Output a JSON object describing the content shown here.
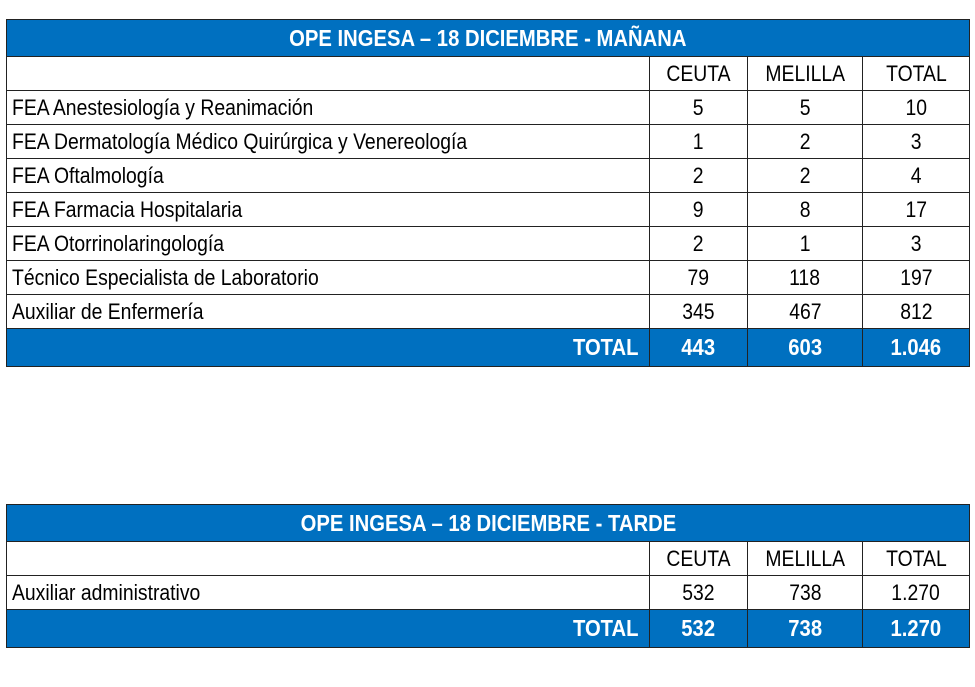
{
  "colors": {
    "header_bg": "#0070c0",
    "header_text": "#ffffff",
    "border": "#222222"
  },
  "table_morning": {
    "title": "OPE INGESA – 18 DICIEMBRE - MAÑANA",
    "columns": [
      "",
      "CEUTA",
      "MELILLA",
      "TOTAL"
    ],
    "rows": [
      {
        "label": "FEA Anestesiología y Reanimación",
        "ceuta": "5",
        "melilla": "5",
        "total": "10"
      },
      {
        "label": "FEA Dermatología Médico Quirúrgica y Venereología",
        "ceuta": "1",
        "melilla": "2",
        "total": "3"
      },
      {
        "label": "FEA Oftalmología",
        "ceuta": "2",
        "melilla": "2",
        "total": "4"
      },
      {
        "label": "FEA Farmacia Hospitalaria",
        "ceuta": "9",
        "melilla": "8",
        "total": "17"
      },
      {
        "label": "FEA Otorrinolaringología",
        "ceuta": "2",
        "melilla": "1",
        "total": "3"
      },
      {
        "label": "Técnico Especialista de Laboratorio",
        "ceuta": "79",
        "melilla": "118",
        "total": "197"
      },
      {
        "label": "Auxiliar de Enfermería",
        "ceuta": "345",
        "melilla": "467",
        "total": "812"
      }
    ],
    "total": {
      "label": "TOTAL",
      "ceuta": "443",
      "melilla": "603",
      "total": "1.046"
    }
  },
  "table_afternoon": {
    "title": "OPE INGESA – 18 DICIEMBRE - TARDE",
    "columns": [
      "",
      "CEUTA",
      "MELILLA",
      "TOTAL"
    ],
    "rows": [
      {
        "label": "Auxiliar administrativo",
        "ceuta": "532",
        "melilla": "738",
        "total": "1.270"
      }
    ],
    "total": {
      "label": "TOTAL",
      "ceuta": "532",
      "melilla": "738",
      "total": "1.270"
    }
  }
}
